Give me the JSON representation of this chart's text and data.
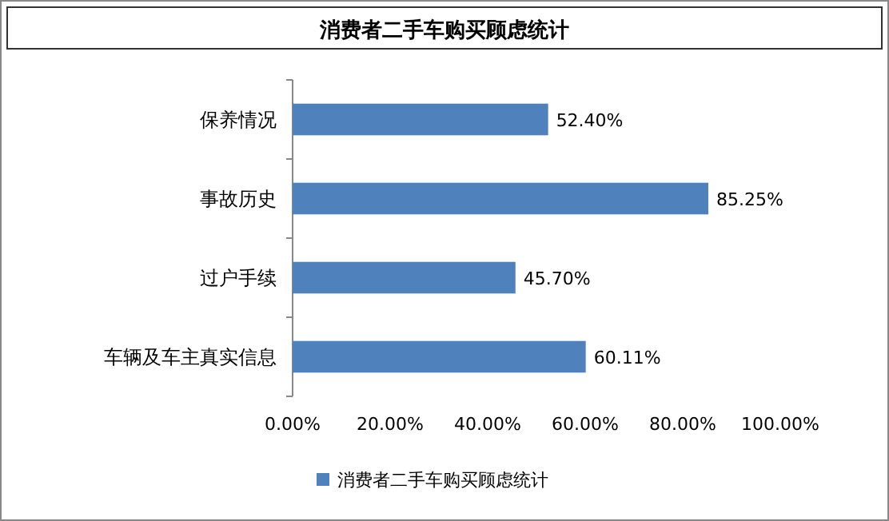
{
  "chart_data": {
    "type": "bar",
    "orientation": "horizontal",
    "title": "消费者二手车购买顾虑统计",
    "categories": [
      "保养情况",
      "事故历史",
      "过户手续",
      "车辆及车主真实信息"
    ],
    "series": [
      {
        "name": "消费者二手车购买顾虑统计",
        "color": "#4f81bd",
        "values": [
          52.4,
          85.25,
          45.7,
          60.11
        ],
        "value_labels": [
          "52.40%",
          "85.25%",
          "45.70%",
          "60.11%"
        ]
      }
    ],
    "xlim": [
      0,
      100
    ],
    "xticks": [
      {
        "value": 0,
        "label": "0.00%"
      },
      {
        "value": 20,
        "label": "20.00%"
      },
      {
        "value": 40,
        "label": "40.00%"
      },
      {
        "value": 60,
        "label": "60.00%"
      },
      {
        "value": 80,
        "label": "80.00%"
      },
      {
        "value": 100,
        "label": "100.00%"
      }
    ],
    "legend": "bottom"
  }
}
